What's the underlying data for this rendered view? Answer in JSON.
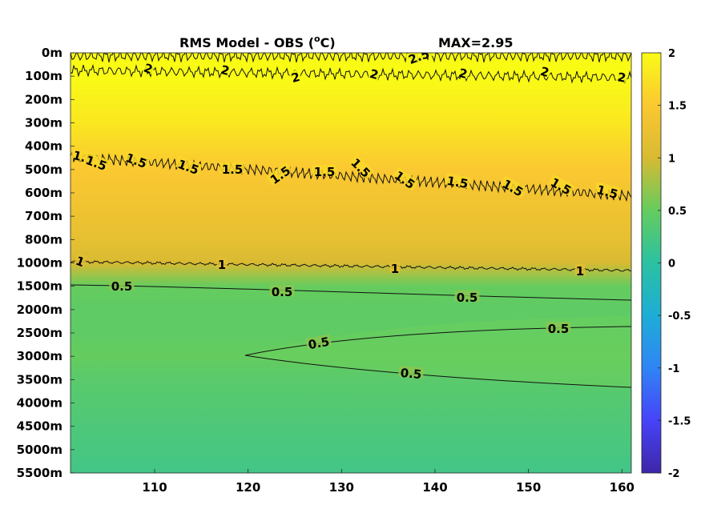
{
  "chart_data": {
    "type": "heatmap",
    "title": "RMS Model - OBS (",
    "title_sup": "o",
    "title_unit": "C)",
    "max_label": "MAX=2.95",
    "xlim": [
      101,
      161
    ],
    "x_ticks": [
      110,
      120,
      130,
      140,
      150,
      160
    ],
    "y_levels": [
      "0m",
      "100m",
      "200m",
      "300m",
      "400m",
      "500m",
      "600m",
      "700m",
      "800m",
      "1000m",
      "1500m",
      "2000m",
      "2500m",
      "3000m",
      "3500m",
      "4000m",
      "4500m",
      "5000m",
      "5500m"
    ],
    "colorbar": {
      "clim": [
        -2,
        2
      ],
      "ticks": [
        "2",
        "1.5",
        "1",
        "0.5",
        "0",
        "-0.5",
        "-1",
        "-1.5",
        "-2"
      ],
      "colormap": "parula",
      "colors": [
        "#3e26a8",
        "#4743f8",
        "#2f85f5",
        "#1dadd6",
        "#2cc1a2",
        "#65cc5e",
        "#d8ba32",
        "#fbc831",
        "#f9fb15"
      ]
    },
    "contour_levels": [
      {
        "level": 2.5,
        "labels": [
          "2.5"
        ]
      },
      {
        "level": 2,
        "labels": [
          "2",
          "2",
          "2",
          "2",
          "2",
          "2",
          "2"
        ]
      },
      {
        "level": 1.5,
        "labels": [
          "1.5",
          "1.5",
          "1.5",
          "1.5",
          "1.5",
          "1.5",
          "1.5",
          "1.5",
          "1.5",
          "1.5",
          "1.5",
          "1.5",
          "1.5"
        ]
      },
      {
        "level": 1,
        "labels": [
          "1",
          "1",
          "1",
          "1"
        ]
      },
      {
        "level": 0.5,
        "labels": [
          "0.5",
          "0.5",
          "0.5",
          "0.5",
          "0.5",
          "0.5"
        ]
      }
    ],
    "depth_profile": [
      {
        "depth": "0m",
        "value": 2.0
      },
      {
        "depth": "100m",
        "value": 2.0
      },
      {
        "depth": "200m",
        "value": 1.9
      },
      {
        "depth": "300m",
        "value": 1.8
      },
      {
        "depth": "400m",
        "value": 1.65
      },
      {
        "depth": "500m",
        "value": 1.5
      },
      {
        "depth": "600m",
        "value": 1.4
      },
      {
        "depth": "700m",
        "value": 1.3
      },
      {
        "depth": "800m",
        "value": 1.2
      },
      {
        "depth": "1000m",
        "value": 1.0
      },
      {
        "depth": "1500m",
        "value": 0.5
      },
      {
        "depth": "2000m",
        "value": 0.45
      },
      {
        "depth": "2500m",
        "value": 0.45
      },
      {
        "depth": "3000m",
        "value": 0.5
      },
      {
        "depth": "3500m",
        "value": 0.4
      },
      {
        "depth": "4000m",
        "value": 0.35
      },
      {
        "depth": "4500m",
        "value": 0.3
      },
      {
        "depth": "5000m",
        "value": 0.25
      },
      {
        "depth": "5500m",
        "value": 0.2
      }
    ]
  }
}
